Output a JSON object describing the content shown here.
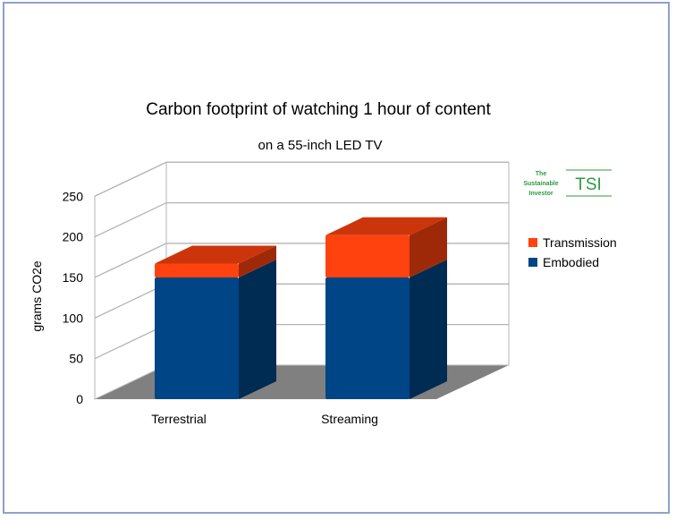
{
  "chart_data": {
    "type": "bar",
    "stacked": true,
    "three_d": true,
    "title": "Carbon footprint of watching 1 hour of content",
    "subtitle": "on a 55-inch LED TV",
    "xlabel": "",
    "ylabel": "grams CO2e",
    "ylim": [
      0,
      250
    ],
    "yticks": [
      0,
      50,
      100,
      150,
      200,
      250
    ],
    "grid": true,
    "legend_position": "right",
    "categories": [
      "Terrestrial",
      "Streaming"
    ],
    "series": [
      {
        "name": "Embodied",
        "values": [
          150,
          150
        ],
        "color": "#004586"
      },
      {
        "name": "Transmission",
        "values": [
          17,
          52
        ],
        "color": "#ff420e"
      }
    ]
  },
  "logo": {
    "line1": "The",
    "line2": "Sustainable",
    "line3": "Investor",
    "abbr": "TSI",
    "color": "#2f9a3e"
  }
}
